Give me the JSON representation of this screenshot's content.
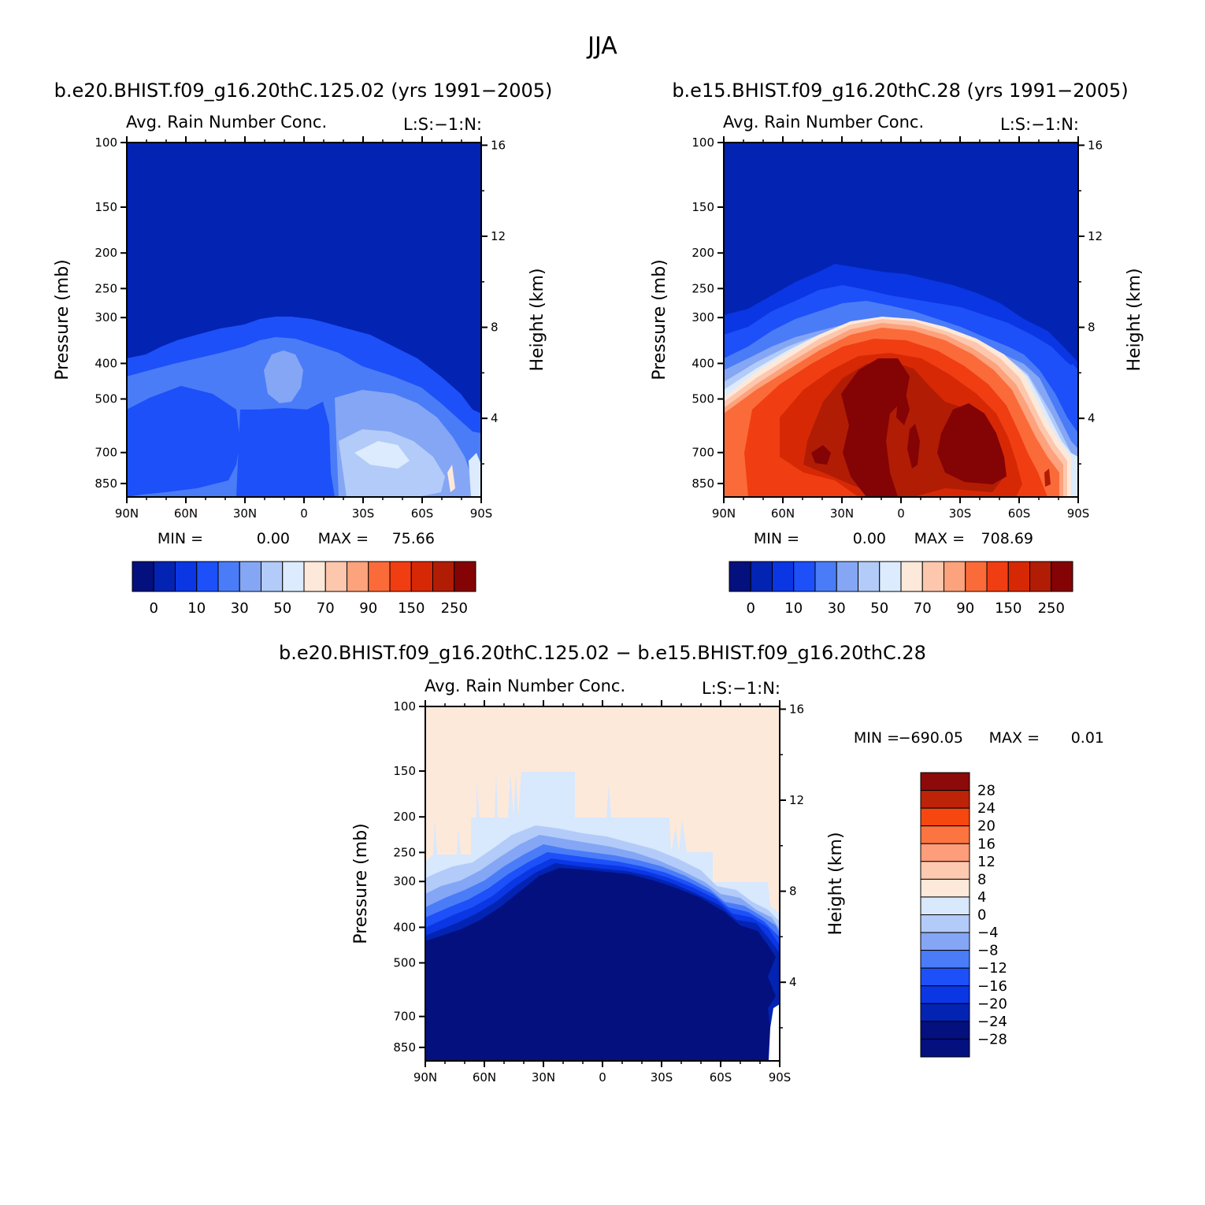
{
  "title": "JJA",
  "chart_data": [
    {
      "type": "heatmap",
      "case_title": "b.e20.BHIST.f09_g16.20thC.125.02 (yrs 1991−2005)",
      "title": "Avg. Rain Number Conc.",
      "subtitle": "L:S:−1:N:",
      "ylabel": "Pressure (mb)",
      "y2label": "Height (km)",
      "xticks": [
        "90N",
        "60N",
        "30N",
        "0",
        "30S",
        "60S",
        "90S"
      ],
      "yticks": [
        100,
        150,
        200,
        250,
        300,
        400,
        500,
        700,
        850
      ],
      "y2ticks": [
        16,
        12,
        8,
        4
      ],
      "ylim": [
        100,
        925
      ],
      "stats": {
        "min": "0.00",
        "max": "75.66"
      },
      "colorbar": {
        "labels": [
          "0",
          "10",
          "30",
          "50",
          "70",
          "90",
          "150",
          "250"
        ],
        "colors": [
          "#03107e",
          "#0323b3",
          "#0a36e3",
          "#1d50f8",
          "#4a7cf7",
          "#84a6f5",
          "#b3cbf8",
          "#dcebfd",
          "#fde9da",
          "#fdc7ad",
          "#fca27c",
          "#fb6b3a",
          "#f13d12",
          "#d72805",
          "#b11c04",
          "#840305"
        ]
      }
    },
    {
      "type": "heatmap",
      "case_title": "b.e15.BHIST.f09_g16.20thC.28 (yrs 1991−2005)",
      "title": "Avg. Rain Number Conc.",
      "subtitle": "L:S:−1:N:",
      "ylabel": "Pressure (mb)",
      "y2label": "Height (km)",
      "xticks": [
        "90N",
        "60N",
        "30N",
        "0",
        "30S",
        "60S",
        "90S"
      ],
      "yticks": [
        100,
        150,
        200,
        250,
        300,
        400,
        500,
        700,
        850
      ],
      "y2ticks": [
        16,
        12,
        8,
        4
      ],
      "ylim": [
        100,
        925
      ],
      "stats": {
        "min": "0.00",
        "max": "708.69"
      },
      "colorbar": {
        "labels": [
          "0",
          "10",
          "30",
          "50",
          "70",
          "90",
          "150",
          "250"
        ],
        "colors": [
          "#03107e",
          "#0323b3",
          "#0a36e3",
          "#1d50f8",
          "#4a7cf7",
          "#84a6f5",
          "#b3cbf8",
          "#dcebfd",
          "#fde9da",
          "#fdc7ad",
          "#fca27c",
          "#fb6b3a",
          "#f13d12",
          "#d72805",
          "#b11c04",
          "#840305"
        ]
      }
    },
    {
      "type": "heatmap",
      "case_title": "b.e20.BHIST.f09_g16.20thC.125.02 − b.e15.BHIST.f09_g16.20thC.28",
      "title": "Avg. Rain Number Conc.",
      "subtitle": "L:S:−1:N:",
      "ylabel": "Pressure (mb)",
      "y2label": "Height (km)",
      "xticks": [
        "90N",
        "60N",
        "30N",
        "0",
        "30S",
        "60S",
        "90S"
      ],
      "yticks": [
        100,
        150,
        200,
        250,
        300,
        400,
        500,
        700,
        850
      ],
      "y2ticks": [
        16,
        12,
        8,
        4
      ],
      "ylim": [
        100,
        925
      ],
      "stats": {
        "min": "−690.05",
        "max": "0.01"
      },
      "colorbar": {
        "labels": [
          "28",
          "24",
          "20",
          "16",
          "12",
          "8",
          "4",
          "0",
          "−4",
          "−8",
          "−12",
          "−16",
          "−20",
          "−24",
          "−28"
        ],
        "colors": [
          "#8c0a0a",
          "#bc2307",
          "#f5470f",
          "#fc7440",
          "#fd9d7a",
          "#fdc9b0",
          "#fde9da",
          "#d8e8fd",
          "#b3cbf8",
          "#84a6f5",
          "#4a7cf7",
          "#1d50f8",
          "#0a36e3",
          "#0323b3",
          "#03107e"
        ]
      }
    }
  ]
}
